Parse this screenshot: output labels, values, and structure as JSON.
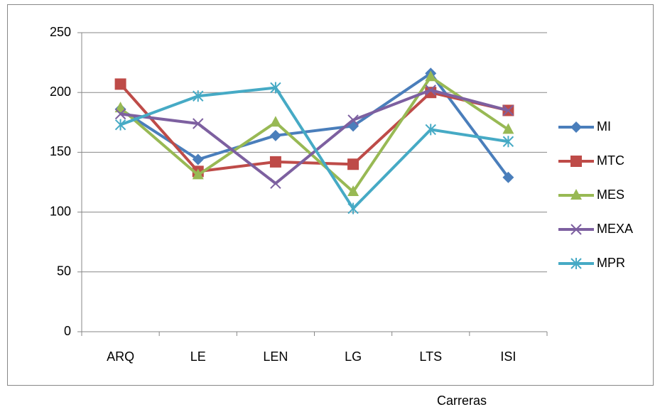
{
  "chart_data": {
    "type": "line",
    "x_label": "Carreras",
    "categories": [
      "ARQ",
      "LE",
      "LEN",
      "LG",
      "LTS",
      "ISI"
    ],
    "series": [
      {
        "name": "MI",
        "color": "#4a7ebb",
        "marker": "diamond",
        "values": [
          186,
          144,
          164,
          172,
          216,
          129
        ]
      },
      {
        "name": "MTC",
        "color": "#be4b48",
        "marker": "square",
        "values": [
          207,
          134,
          142,
          140,
          200,
          185
        ]
      },
      {
        "name": "MES",
        "color": "#98b954",
        "marker": "triangle",
        "values": [
          187,
          131,
          175,
          117,
          213,
          169
        ]
      },
      {
        "name": "MEXA",
        "color": "#7d60a0",
        "marker": "x",
        "values": [
          182,
          174,
          124,
          177,
          202,
          185
        ]
      },
      {
        "name": "MPR",
        "color": "#46aac5",
        "marker": "star",
        "values": [
          173,
          197,
          204,
          103,
          169,
          159
        ]
      }
    ],
    "ylim": [
      0,
      250
    ],
    "yticks": [
      0,
      50,
      100,
      150,
      200,
      250
    ],
    "grid": true,
    "legend": "right"
  }
}
